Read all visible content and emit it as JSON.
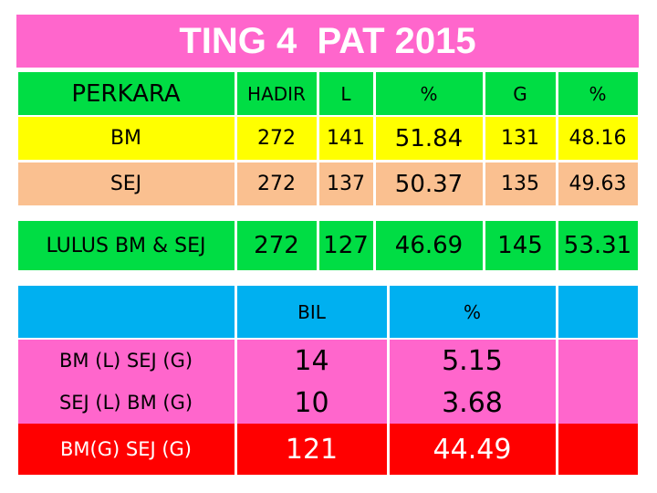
{
  "title": "TING 4  PAT 2015",
  "table1": {
    "header": [
      "PERKARA",
      "HADIR",
      "L",
      "%",
      "G",
      "%"
    ],
    "rows": [
      [
        "BM",
        272,
        141,
        51.84,
        131,
        48.16
      ],
      [
        "SEJ",
        272,
        137,
        50.37,
        135,
        49.63
      ]
    ],
    "total": [
      "LULUS BM & SEJ",
      272,
      127,
      46.69,
      145,
      53.31
    ]
  },
  "table2": {
    "header": [
      "BIL",
      "%"
    ],
    "rows": [
      [
        "BM (L) SEJ (G)",
        14,
        5.15
      ],
      [
        "SEJ (L) BM (G)",
        10,
        3.68
      ],
      [
        "BM(G) SEJ (G)",
        121,
        44.49
      ]
    ]
  }
}
